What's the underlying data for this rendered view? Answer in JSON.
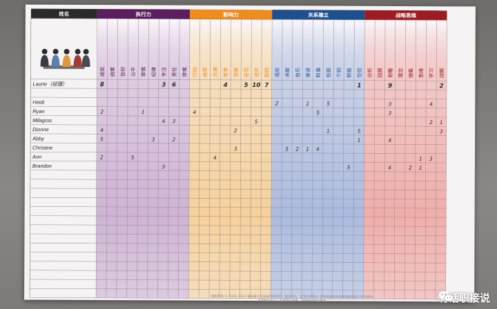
{
  "headers": {
    "name_col": "姓名",
    "groups": [
      {
        "label": "执行力",
        "color": "#5b1e5e",
        "tint": "#cdb0d3",
        "themes": [
          "成就",
          "统筹",
          "信仰",
          "公平",
          "审慎",
          "纪律",
          "专注",
          "责任",
          "排难"
        ]
      },
      {
        "label": "影响力",
        "color": "#f08c1c",
        "tint": "#f6cf95",
        "themes": [
          "行动",
          "统率",
          "沟通",
          "竞争",
          "完美",
          "自信",
          "追求",
          "取悦"
        ]
      },
      {
        "label": "关系建立",
        "color": "#1e4f8f",
        "tint": "#a7b8de",
        "themes": [
          "适应",
          "关联",
          "伯乐",
          "体谅",
          "和谐",
          "包容",
          "个别",
          "积极",
          "交往"
        ]
      },
      {
        "label": "战略思维",
        "color": "#9e1b22",
        "tint": "#f0aaa6",
        "themes": [
          "分析",
          "回顾",
          "前瞻",
          "理念",
          "搜集",
          "思维",
          "学习",
          "战略"
        ]
      }
    ]
  },
  "rows": [
    {
      "name": "Laurie（经理）",
      "marks": [
        [
          0,
          "8"
        ],
        [
          6,
          "3"
        ],
        [
          7,
          "6"
        ],
        [
          12,
          "4"
        ],
        [
          14,
          "5"
        ],
        [
          15,
          "10"
        ],
        [
          16,
          "7"
        ],
        [
          25,
          "1"
        ],
        [
          28,
          "9"
        ],
        [
          33,
          "2"
        ]
      ]
    },
    {
      "name": "",
      "marks": []
    },
    {
      "name": "Heidi",
      "marks": [
        [
          17,
          "2"
        ],
        [
          20,
          "1"
        ],
        [
          22,
          "5"
        ],
        [
          28,
          "3"
        ],
        [
          32,
          "4"
        ]
      ]
    },
    {
      "name": "Ryan",
      "marks": [
        [
          0,
          "2"
        ],
        [
          4,
          "1"
        ],
        [
          9,
          "4"
        ],
        [
          21,
          "5"
        ],
        [
          28,
          "3"
        ]
      ]
    },
    {
      "name": "Milagros",
      "marks": [
        [
          6,
          "4"
        ],
        [
          7,
          "3"
        ],
        [
          15,
          "5"
        ],
        [
          32,
          "2"
        ],
        [
          33,
          "1"
        ]
      ]
    },
    {
      "name": "Dionne",
      "marks": [
        [
          0,
          "4"
        ],
        [
          13,
          "2"
        ],
        [
          22,
          "1"
        ],
        [
          25,
          "5"
        ],
        [
          33,
          "3"
        ]
      ]
    },
    {
      "name": "Abby",
      "marks": [
        [
          0,
          "5"
        ],
        [
          5,
          "3"
        ],
        [
          7,
          "2"
        ],
        [
          25,
          "1"
        ],
        [
          28,
          "4"
        ]
      ]
    },
    {
      "name": "Christine",
      "marks": [
        [
          13,
          "3"
        ],
        [
          18,
          "5"
        ],
        [
          19,
          "2"
        ],
        [
          20,
          "1"
        ],
        [
          21,
          "4"
        ]
      ]
    },
    {
      "name": "Ann",
      "marks": [
        [
          0,
          "2"
        ],
        [
          3,
          "5"
        ],
        [
          11,
          "4"
        ],
        [
          31,
          "1"
        ],
        [
          32,
          "3"
        ]
      ]
    },
    {
      "name": "Brandon",
      "marks": [
        [
          6,
          "3"
        ],
        [
          24,
          "5"
        ],
        [
          28,
          "4"
        ],
        [
          30,
          "2"
        ],
        [
          31,
          "1"
        ]
      ]
    }
  ],
  "empty_rows": 14,
  "footer_lines": [
    "版权所有 © 2000, 2012 盖洛普公司保留所有权利。盖洛普®、优势识别器® 及其他盖洛普品牌是盖洛普公司的商标。",
    "本表格仅供个人及其团队使用，不得另作商业用途。"
  ],
  "watermark": "有话职接说",
  "watermark_icon": "wechat-icon"
}
